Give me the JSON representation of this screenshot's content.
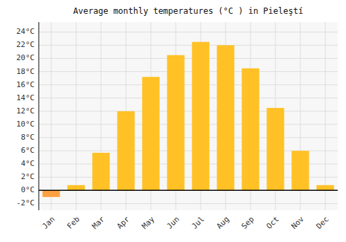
{
  "chart_data": {
    "type": "bar",
    "title": "Average monthly temperatures (°C ) in Pieleştí",
    "categories": [
      "Jan",
      "Feb",
      "Mar",
      "Apr",
      "May",
      "Jun",
      "Jul",
      "Aug",
      "Sep",
      "Oct",
      "Nov",
      "Dec"
    ],
    "values": [
      -1.0,
      0.8,
      5.7,
      12.0,
      17.2,
      20.5,
      22.5,
      22.0,
      18.5,
      12.5,
      6.0,
      0.8
    ],
    "colors": [
      "#FFA040",
      "#FFC125",
      "#FFC125",
      "#FFC125",
      "#FFC125",
      "#FFC125",
      "#FFC125",
      "#FFC125",
      "#FFC125",
      "#FFC125",
      "#FFC125",
      "#FFC125"
    ],
    "ylim": [
      -3.0,
      25.5
    ],
    "yticks": [
      {
        "value": -2,
        "label": "-2°C"
      },
      {
        "value": 0,
        "label": "0°C"
      },
      {
        "value": 2,
        "label": "2°C"
      },
      {
        "value": 4,
        "label": "4°C"
      },
      {
        "value": 6,
        "label": "6°C"
      },
      {
        "value": 8,
        "label": "8°C"
      },
      {
        "value": 10,
        "label": "10°C"
      },
      {
        "value": 12,
        "label": "12°C"
      },
      {
        "value": 14,
        "label": "14°C"
      },
      {
        "value": 16,
        "label": "16°C"
      },
      {
        "value": 18,
        "label": "18°C"
      },
      {
        "value": 20,
        "label": "20°C"
      },
      {
        "value": 22,
        "label": "22°C"
      },
      {
        "value": 24,
        "label": "24°C"
      }
    ],
    "grid": true
  }
}
